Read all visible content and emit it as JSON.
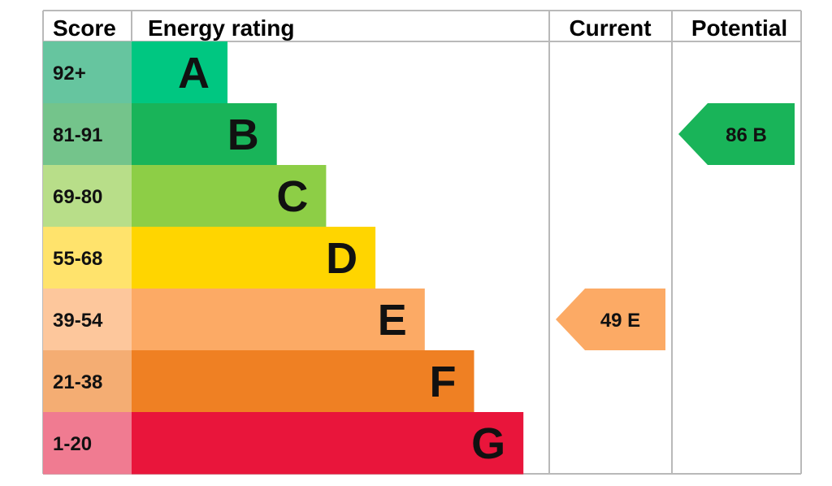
{
  "chart_data": {
    "type": "bar",
    "headers": {
      "score": "Score",
      "rating": "Energy rating",
      "current": "Current",
      "potential": "Potential"
    },
    "bands": [
      {
        "letter": "A",
        "range": "92+",
        "color": "#00c781",
        "score_color": "#66c59f"
      },
      {
        "letter": "B",
        "range": "81-91",
        "color": "#19b459",
        "score_color": "#74c48b"
      },
      {
        "letter": "C",
        "range": "69-80",
        "color": "#8dce46",
        "score_color": "#b8de89"
      },
      {
        "letter": "D",
        "range": "55-68",
        "color": "#ffd500",
        "score_color": "#ffe36c"
      },
      {
        "letter": "E",
        "range": "39-54",
        "color": "#fcaa65",
        "score_color": "#fdc79c"
      },
      {
        "letter": "F",
        "range": "21-38",
        "color": "#ef8023",
        "score_color": "#f4ad73"
      },
      {
        "letter": "G",
        "range": "1-20",
        "color": "#e9153b",
        "score_color": "#f07b91"
      }
    ],
    "current": {
      "score": 49,
      "band": "E",
      "label": "49  E",
      "color": "#fcaa65"
    },
    "potential": {
      "score": 86,
      "band": "B",
      "label": "86  B",
      "color": "#19b459"
    }
  }
}
